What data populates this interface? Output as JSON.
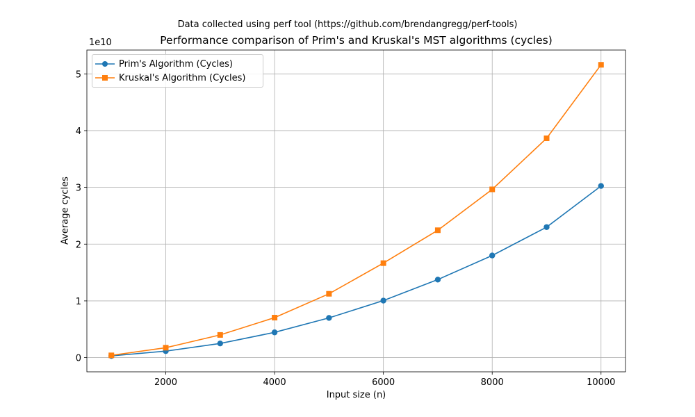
{
  "chart_data": {
    "type": "line",
    "suptitle": "Data collected using perf tool (https://github.com/brendangregg/perf-tools)",
    "title": "Performance comparison of Prim's and Kruskal's MST algorithms (cycles)",
    "xlabel": "Input size (n)",
    "ylabel": "Average cycles",
    "y_offset_label": "1e10",
    "xlim": [
      550,
      10450
    ],
    "ylim": [
      -2500000000,
      54200000000
    ],
    "x_ticks": [
      2000,
      4000,
      6000,
      8000,
      10000
    ],
    "x_tick_labels": [
      "2000",
      "4000",
      "6000",
      "8000",
      "10000"
    ],
    "y_ticks": [
      0,
      10000000000,
      20000000000,
      30000000000,
      40000000000,
      50000000000
    ],
    "y_tick_labels": [
      "0",
      "1",
      "2",
      "3",
      "4",
      "5"
    ],
    "grid": true,
    "legend_position": "top-left",
    "x": [
      1000,
      2000,
      3000,
      4000,
      5000,
      6000,
      7000,
      8000,
      9000,
      10000
    ],
    "series": [
      {
        "name": "Prim's Algorithm (Cycles)",
        "color": "#1f77b4",
        "marker": "circle",
        "values": [
          300000000,
          1150000000,
          2500000000,
          4450000000,
          7000000000,
          10050000000,
          13750000000,
          18000000000,
          23000000000,
          30250000000
        ]
      },
      {
        "name": "Kruskal's Algorithm (Cycles)",
        "color": "#ff7f0e",
        "marker": "square",
        "values": [
          400000000,
          1750000000,
          4000000000,
          7050000000,
          11250000000,
          16650000000,
          22450000000,
          29650000000,
          38650000000,
          51600000000
        ]
      }
    ]
  }
}
